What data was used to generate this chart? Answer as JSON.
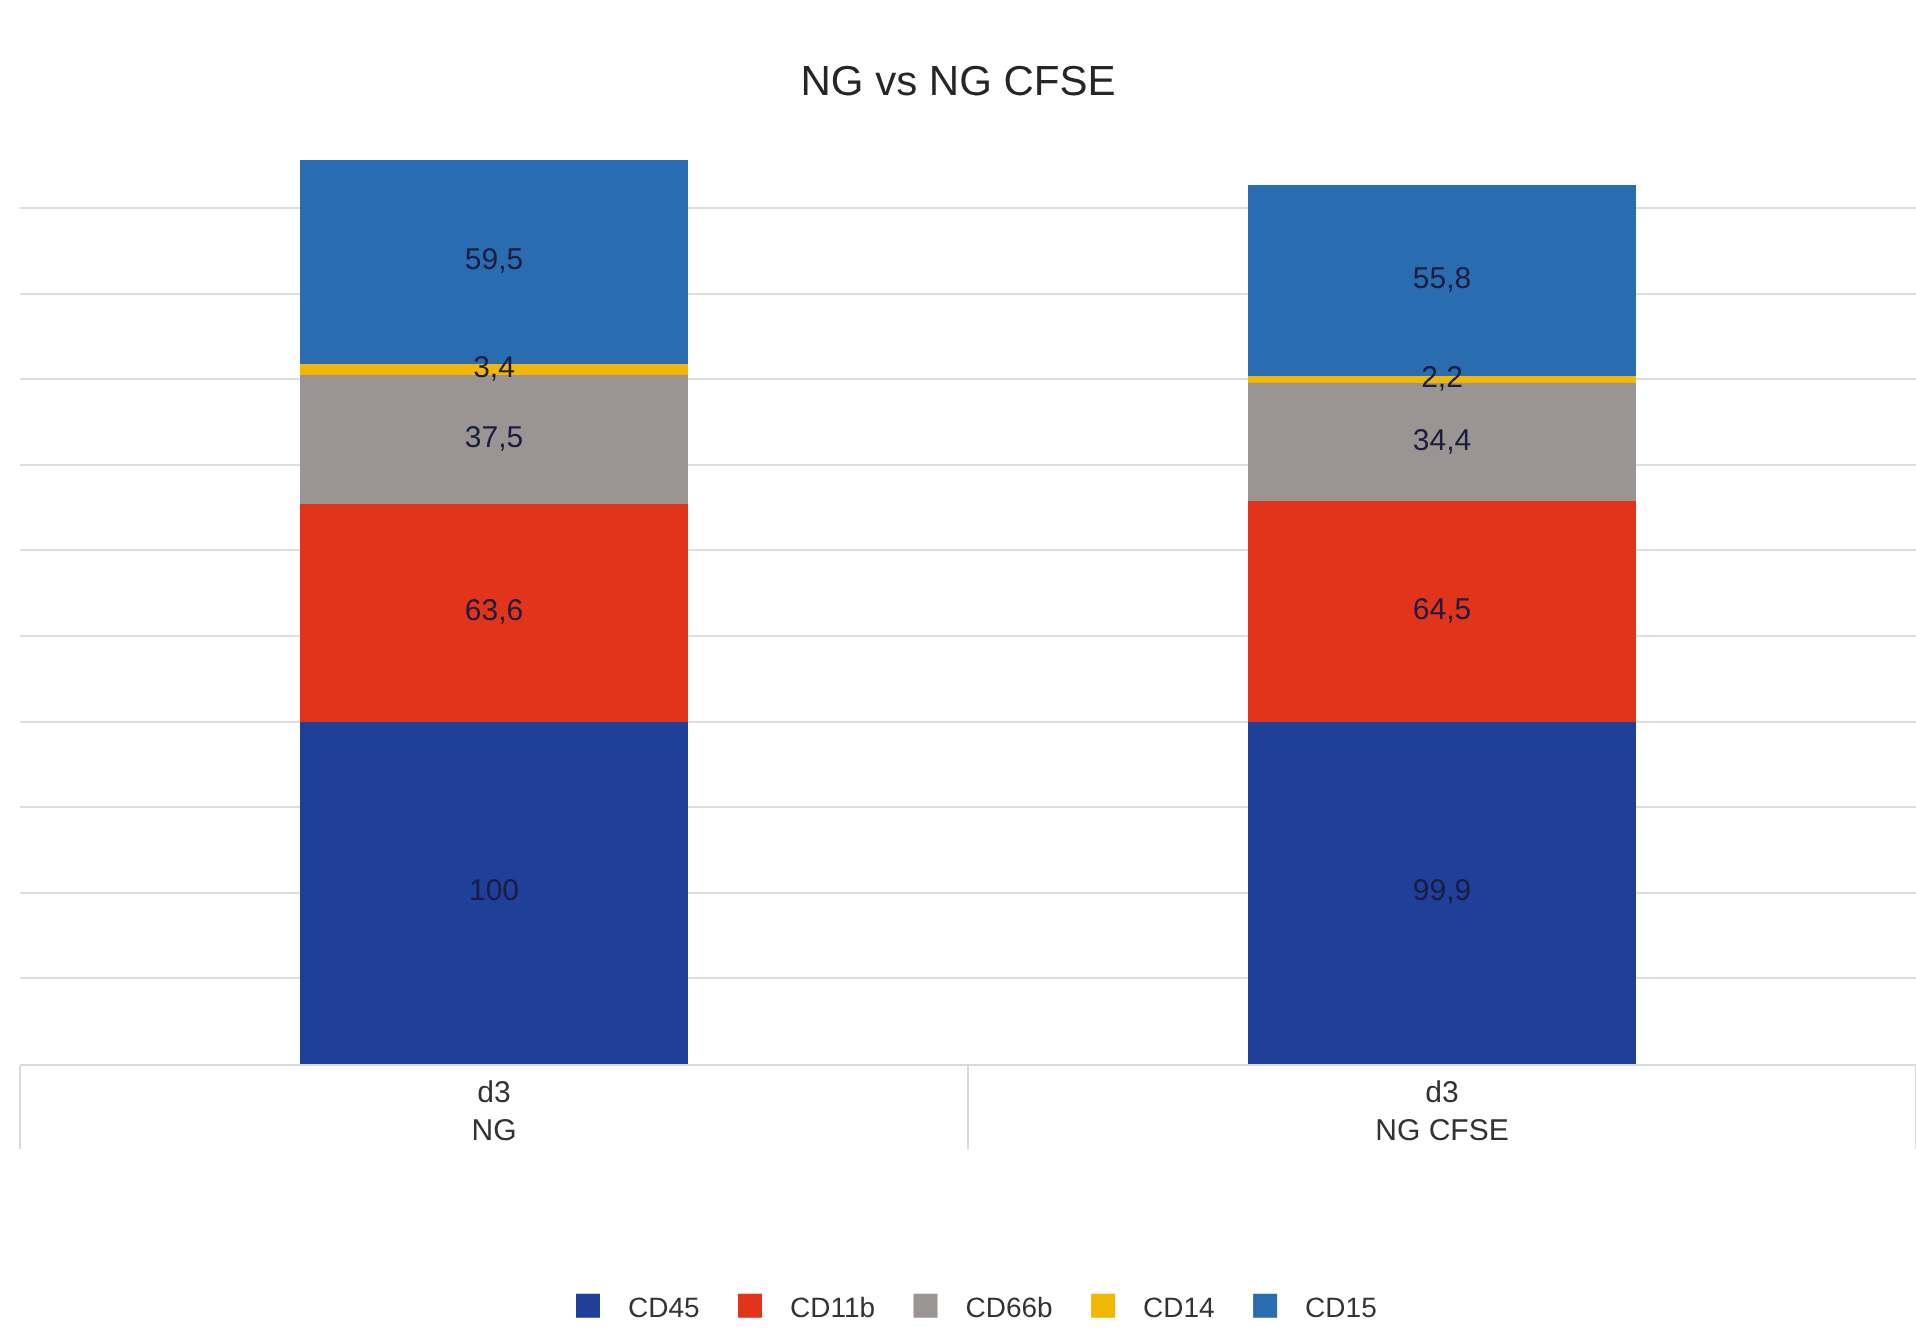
{
  "chart_data": {
    "type": "bar",
    "title": "NG vs NG CFSE",
    "categories": [
      "d3\nNG",
      "d3\nNG CFSE"
    ],
    "stacked": true,
    "series": [
      {
        "name": "CD45",
        "color": "#1f3f99",
        "values": [
          100,
          99.9
        ],
        "value_labels": [
          "100",
          "99,9"
        ]
      },
      {
        "name": "CD11b",
        "color": "#e2341a",
        "values": [
          63.6,
          64.5
        ],
        "value_labels": [
          "63,6",
          "64,5"
        ]
      },
      {
        "name": "CD66b",
        "color": "#9a9592",
        "values": [
          37.5,
          34.4
        ],
        "value_labels": [
          "37,5",
          "34,4"
        ]
      },
      {
        "name": "CD14",
        "color": "#f2b705",
        "values": [
          3.4,
          2.2
        ],
        "value_labels": [
          "3,4",
          "2,2"
        ]
      },
      {
        "name": "CD15",
        "color": "#2a6cb0",
        "values": [
          59.5,
          55.8
        ],
        "value_labels": [
          "59,5",
          "55,8"
        ]
      }
    ],
    "ylim": [
      0,
      264
    ],
    "yticks": [
      {
        "value": 0,
        "label": null
      },
      {
        "value": 25,
        "label": null
      },
      {
        "value": 50,
        "label": null
      },
      {
        "value": 75,
        "label": null
      },
      {
        "value": 100,
        "label": null
      },
      {
        "value": 125,
        "label": null
      },
      {
        "value": 150,
        "label": null
      },
      {
        "value": 175,
        "label": null
      },
      {
        "value": 200,
        "label": null
      },
      {
        "value": 225,
        "label": null
      },
      {
        "value": 250,
        "label": null
      }
    ],
    "grid": "y",
    "legend": "bottom",
    "tick_labels": "x"
  }
}
